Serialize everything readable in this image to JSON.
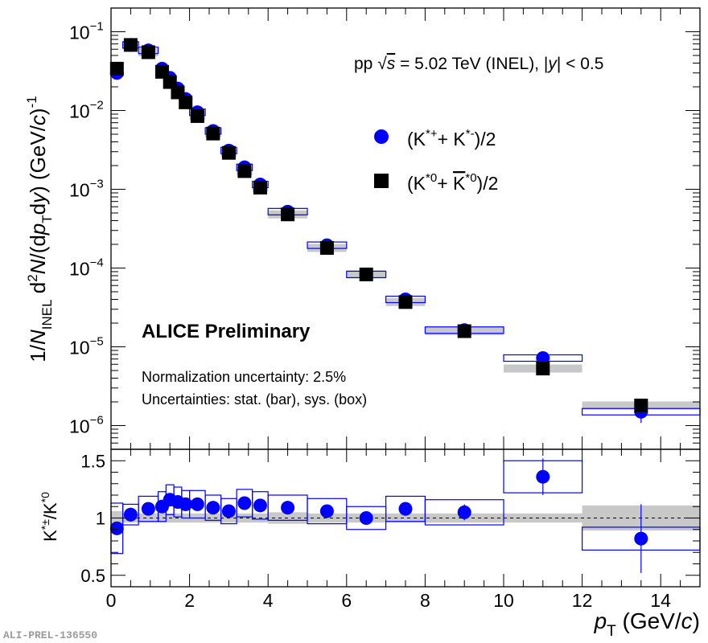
{
  "chart_data": [
    {
      "type": "scatter",
      "title": "",
      "system_text": "pp √s = 5.02 TeV (INEL), |y| < 0.5",
      "experiment": "ALICE Preliminary",
      "annotations": [
        "Normalization uncertainty: 2.5%",
        "Uncertainties: stat. (bar), sys. (box)"
      ],
      "xlabel": "p_T (GeV/c)",
      "ylabel": "1/N_INEL d²N/(dp_T dy) (GeV/c)^-1",
      "yscale": "log",
      "xlim": [
        0,
        15
      ],
      "ylim": [
        5e-07,
        0.2
      ],
      "y_ticks": [
        {
          "value": 1e-06,
          "exp": "−6"
        },
        {
          "value": 1e-05,
          "exp": "−5"
        },
        {
          "value": 0.0001,
          "exp": "−4"
        },
        {
          "value": 0.001,
          "exp": "−3"
        },
        {
          "value": 0.01,
          "exp": "−2"
        },
        {
          "value": 0.1,
          "exp": "−1"
        }
      ],
      "series": [
        {
          "name": "(K*⁺+ K*⁻)/2",
          "legend": {
            "base": "(K",
            "sup1": "*+",
            "mid": "+ K",
            "sup2": "*-",
            "end": ")/2"
          },
          "color": "#0000ff",
          "marker": "circle",
          "points": [
            {
              "x": 0.15,
              "y": 0.03,
              "lo": 0.0,
              "hi": 0.3
            },
            {
              "x": 0.5,
              "y": 0.068,
              "lo": 0.3,
              "hi": 0.7
            },
            {
              "x": 0.95,
              "y": 0.058,
              "lo": 0.7,
              "hi": 1.2
            },
            {
              "x": 1.3,
              "y": 0.034,
              "lo": 1.2,
              "hi": 1.4
            },
            {
              "x": 1.5,
              "y": 0.026,
              "lo": 1.4,
              "hi": 1.6
            },
            {
              "x": 1.7,
              "y": 0.019,
              "lo": 1.6,
              "hi": 1.8
            },
            {
              "x": 1.9,
              "y": 0.014,
              "lo": 1.8,
              "hi": 2.0
            },
            {
              "x": 2.2,
              "y": 0.0095,
              "lo": 2.0,
              "hi": 2.4
            },
            {
              "x": 2.6,
              "y": 0.0055,
              "lo": 2.4,
              "hi": 2.8
            },
            {
              "x": 3.0,
              "y": 0.0031,
              "lo": 2.8,
              "hi": 3.2
            },
            {
              "x": 3.4,
              "y": 0.0019,
              "lo": 3.2,
              "hi": 3.6
            },
            {
              "x": 3.8,
              "y": 0.00115,
              "lo": 3.6,
              "hi": 4.0
            },
            {
              "x": 4.5,
              "y": 0.00052,
              "lo": 4.0,
              "hi": 5.0
            },
            {
              "x": 5.5,
              "y": 0.000195,
              "lo": 5.0,
              "hi": 6.0
            },
            {
              "x": 6.5,
              "y": 8.3e-05,
              "lo": 6.0,
              "hi": 7.0
            },
            {
              "x": 7.5,
              "y": 4e-05,
              "lo": 7.0,
              "hi": 8.0
            },
            {
              "x": 9.0,
              "y": 1.63e-05,
              "lo": 8.0,
              "hi": 10.0
            },
            {
              "x": 11.0,
              "y": 7.2e-06,
              "lo": 10.0,
              "hi": 12.0
            },
            {
              "x": 13.5,
              "y": 1.5e-06,
              "lo": 12.0,
              "hi": 15.0
            }
          ]
        },
        {
          "name": "(K*⁰+ K̄*⁰)/2",
          "legend": {
            "base": "(K",
            "sup1": "*0",
            "mid": "+ ",
            "bar": "K",
            "sup2": "*0",
            "end": ")/2"
          },
          "color": "#000000",
          "marker": "square",
          "points": [
            {
              "x": 0.15,
              "y": 0.034
            },
            {
              "x": 0.5,
              "y": 0.068
            },
            {
              "x": 0.95,
              "y": 0.055
            },
            {
              "x": 1.3,
              "y": 0.031
            },
            {
              "x": 1.5,
              "y": 0.023
            },
            {
              "x": 1.7,
              "y": 0.017
            },
            {
              "x": 1.9,
              "y": 0.0127
            },
            {
              "x": 2.2,
              "y": 0.0085
            },
            {
              "x": 2.6,
              "y": 0.0051
            },
            {
              "x": 3.0,
              "y": 0.0029
            },
            {
              "x": 3.4,
              "y": 0.0017
            },
            {
              "x": 3.8,
              "y": 0.00105
            },
            {
              "x": 4.5,
              "y": 0.00048
            },
            {
              "x": 5.5,
              "y": 0.00018
            },
            {
              "x": 6.5,
              "y": 8.3e-05
            },
            {
              "x": 7.5,
              "y": 3.7e-05
            },
            {
              "x": 9.0,
              "y": 1.58e-05
            },
            {
              "x": 11.0,
              "y": 5.3e-06
            },
            {
              "x": 13.5,
              "y": 1.8e-06
            }
          ]
        }
      ]
    },
    {
      "type": "scatter",
      "xlabel": "p_T (GeV/c)",
      "ylabel": "K*±/K*0",
      "xlim": [
        0,
        15
      ],
      "ylim": [
        0.4,
        1.6
      ],
      "x_ticks": [
        0,
        2,
        4,
        6,
        8,
        10,
        12,
        14
      ],
      "y_ticks": [
        0.5,
        1,
        1.5
      ],
      "reference_line": 1.0,
      "series": [
        {
          "name": "K*±/K*0",
          "color": "#0000ff",
          "points": [
            {
              "x": 0.15,
              "y": 0.91,
              "lo": 0.0,
              "hi": 0.3,
              "stat": 0.05,
              "sys": 0.22
            },
            {
              "x": 0.5,
              "y": 1.03,
              "lo": 0.3,
              "hi": 0.7,
              "stat": 0.06,
              "sys": 0.09
            },
            {
              "x": 0.95,
              "y": 1.08,
              "lo": 0.7,
              "hi": 1.2,
              "stat": 0.04,
              "sys": 0.11
            },
            {
              "x": 1.3,
              "y": 1.1,
              "lo": 1.2,
              "hi": 1.4,
              "stat": 0.04,
              "sys": 0.13
            },
            {
              "x": 1.5,
              "y": 1.16,
              "lo": 1.4,
              "hi": 1.6,
              "stat": 0.04,
              "sys": 0.13
            },
            {
              "x": 1.7,
              "y": 1.14,
              "lo": 1.6,
              "hi": 1.8,
              "stat": 0.04,
              "sys": 0.13
            },
            {
              "x": 1.9,
              "y": 1.12,
              "lo": 1.8,
              "hi": 2.0,
              "stat": 0.04,
              "sys": 0.12
            },
            {
              "x": 2.2,
              "y": 1.12,
              "lo": 2.0,
              "hi": 2.4,
              "stat": 0.03,
              "sys": 0.12
            },
            {
              "x": 2.6,
              "y": 1.09,
              "lo": 2.4,
              "hi": 2.8,
              "stat": 0.03,
              "sys": 0.11
            },
            {
              "x": 3.0,
              "y": 1.06,
              "lo": 2.8,
              "hi": 3.2,
              "stat": 0.03,
              "sys": 0.11
            },
            {
              "x": 3.4,
              "y": 1.13,
              "lo": 3.2,
              "hi": 3.6,
              "stat": 0.03,
              "sys": 0.12
            },
            {
              "x": 3.8,
              "y": 1.11,
              "lo": 3.6,
              "hi": 4.0,
              "stat": 0.03,
              "sys": 0.12
            },
            {
              "x": 4.5,
              "y": 1.09,
              "lo": 4.0,
              "hi": 5.0,
              "stat": 0.03,
              "sys": 0.11
            },
            {
              "x": 5.5,
              "y": 1.06,
              "lo": 5.0,
              "hi": 6.0,
              "stat": 0.04,
              "sys": 0.11
            },
            {
              "x": 6.5,
              "y": 1.0,
              "lo": 6.0,
              "hi": 7.0,
              "stat": 0.04,
              "sys": 0.1
            },
            {
              "x": 7.5,
              "y": 1.08,
              "lo": 7.0,
              "hi": 8.0,
              "stat": 0.06,
              "sys": 0.11
            },
            {
              "x": 9.0,
              "y": 1.05,
              "lo": 8.0,
              "hi": 10.0,
              "stat": 0.07,
              "sys": 0.11
            },
            {
              "x": 11.0,
              "y": 1.36,
              "lo": 10.0,
              "hi": 12.0,
              "stat": 0.16,
              "sys": 0.14
            },
            {
              "x": 13.5,
              "y": 0.82,
              "lo": 12.0,
              "hi": 15.0,
              "stat": 0.3,
              "sys": 0.1
            }
          ]
        }
      ],
      "gray_band": [
        {
          "lo": 0.0,
          "hi": 0.3,
          "err": 0.06
        },
        {
          "lo": 0.3,
          "hi": 4.0,
          "err": 0.04
        },
        {
          "lo": 4.0,
          "hi": 5.0,
          "err": 0.05
        },
        {
          "lo": 5.0,
          "hi": 7.0,
          "err": 0.04
        },
        {
          "lo": 7.0,
          "hi": 12.0,
          "err": 0.04
        },
        {
          "lo": 12.0,
          "hi": 15.0,
          "err": 0.11
        }
      ]
    }
  ],
  "footer": {
    "id_label": "ALI-PREL-136550"
  },
  "axis_text": {
    "x_title_var": "p",
    "x_title_sub": "T",
    "x_title_unit": " (GeV/",
    "x_title_c": "c",
    "x_title_close": ")",
    "y_title_parts": [
      "1/",
      "N",
      "INEL",
      " d",
      "2",
      "N",
      "/(d",
      "p",
      "T",
      "d",
      "y",
      ") (GeV/",
      "c",
      ")",
      "-1"
    ],
    "ratio_title": {
      "base": "K",
      "sup1": "*±",
      "slash": "/K",
      "sup2": "*0"
    },
    "tick_base": "10",
    "system": {
      "pp": "pp ",
      "sqrt": "√",
      "s": "s",
      "eq": " = 5.02 TeV (INEL), |",
      "y": "y",
      "end": "| < 0.5"
    }
  }
}
